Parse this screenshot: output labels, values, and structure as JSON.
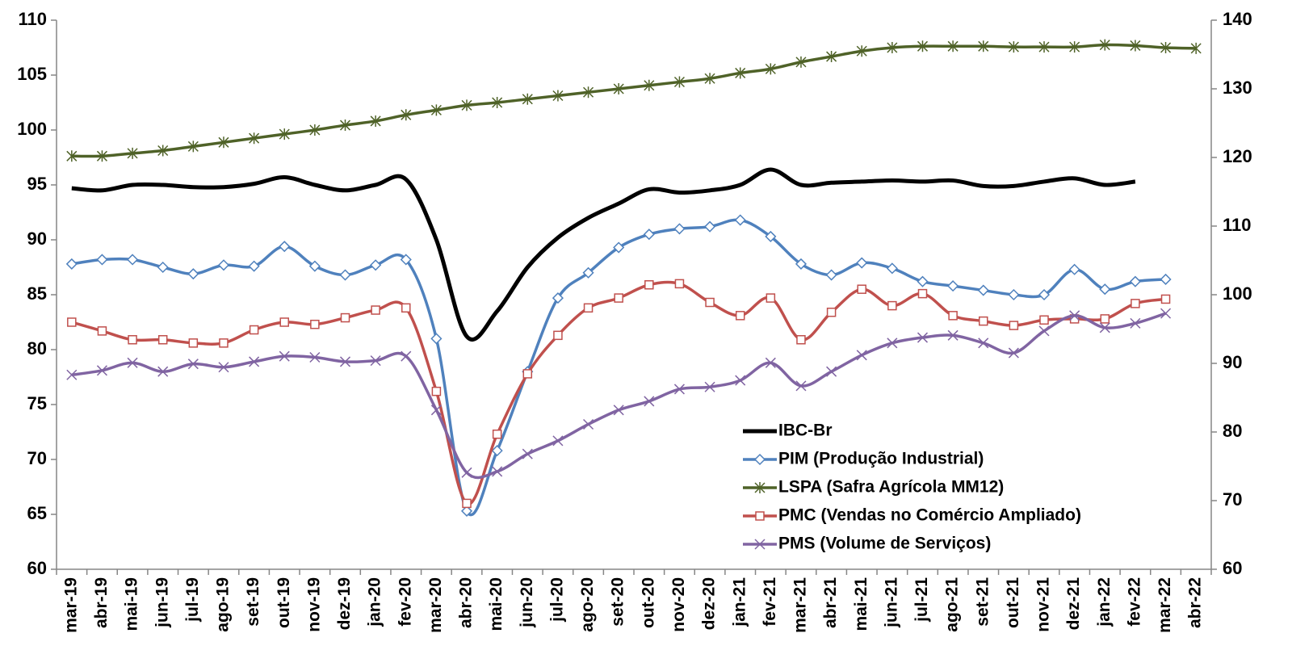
{
  "chart_data": {
    "type": "line",
    "categories": [
      "mar-19",
      "abr-19",
      "mai-19",
      "jun-19",
      "jul-19",
      "ago-19",
      "set-19",
      "out-19",
      "nov-19",
      "dez-19",
      "jan-20",
      "fev-20",
      "mar-20",
      "abr-20",
      "mai-20",
      "jun-20",
      "jul-20",
      "ago-20",
      "set-20",
      "out-20",
      "nov-20",
      "dez-20",
      "jan-21",
      "fev-21",
      "mar-21",
      "abr-21",
      "mai-21",
      "jun-21",
      "jul-21",
      "ago-21",
      "set-21",
      "out-21",
      "nov-21",
      "dez-21",
      "jan-22",
      "fev-22",
      "mar-22",
      "abr-22"
    ],
    "ylim": [
      60,
      110
    ],
    "yticks": [
      60,
      65,
      70,
      75,
      80,
      85,
      90,
      95,
      100,
      105,
      110
    ],
    "y2lim": [
      60,
      140
    ],
    "y2ticks": [
      60,
      70,
      80,
      90,
      100,
      110,
      120,
      130,
      140
    ],
    "grid": false,
    "legend": "lower-right",
    "series": [
      {
        "name": "IBC-Br",
        "color": "#000000",
        "line_width": 5,
        "values": [
          94.7,
          94.5,
          95.0,
          95.0,
          94.8,
          94.8,
          95.1,
          95.7,
          95.0,
          94.5,
          95.0,
          95.5,
          90.0,
          81.2,
          83.5,
          87.5,
          90.2,
          92.0,
          93.3,
          94.6,
          94.3,
          94.5,
          95.0,
          96.4,
          95.0,
          95.2,
          95.3,
          95.4,
          95.3,
          95.4,
          94.9,
          94.9,
          95.3,
          95.6,
          95.0,
          95.3,
          null,
          null
        ]
      },
      {
        "name": "PIM (Produção Industrial)",
        "color": "#4f81bd",
        "marker": "diamond",
        "line_width": 3.5,
        "values": [
          87.8,
          88.2,
          88.2,
          87.5,
          86.9,
          87.7,
          87.6,
          89.4,
          87.6,
          86.8,
          87.7,
          88.2,
          81.0,
          65.3,
          70.8,
          78.0,
          84.7,
          87.0,
          89.3,
          90.5,
          91.0,
          91.2,
          91.8,
          90.3,
          87.8,
          86.8,
          87.9,
          87.4,
          86.2,
          85.8,
          85.4,
          85.0,
          85.0,
          87.3,
          85.5,
          86.2,
          86.4,
          null
        ]
      },
      {
        "name": "LSPA (Safra Agrícola MM12)",
        "color": "#4f6228",
        "marker": "asterisk",
        "line_width": 3.5,
        "axis": "y2",
        "values": [
          120.2,
          120.2,
          120.6,
          121.0,
          121.6,
          122.2,
          122.8,
          123.4,
          124.0,
          124.7,
          125.3,
          126.2,
          126.9,
          127.6,
          128.0,
          128.5,
          129.0,
          129.5,
          130.0,
          130.5,
          131.0,
          131.5,
          132.3,
          132.9,
          133.9,
          134.7,
          135.5,
          136.0,
          136.2,
          136.2,
          136.2,
          136.1,
          136.1,
          136.1,
          136.4,
          136.3,
          136.0,
          135.9
        ]
      },
      {
        "name": "PMC (Vendas no Comércio Ampliado)",
        "color": "#c0504d",
        "marker": "square",
        "line_width": 3.5,
        "values": [
          82.5,
          81.7,
          80.9,
          80.9,
          80.6,
          80.6,
          81.8,
          82.5,
          82.3,
          82.9,
          83.6,
          83.8,
          76.2,
          66.0,
          72.3,
          77.8,
          81.3,
          83.8,
          84.7,
          85.9,
          86.0,
          84.3,
          83.1,
          84.7,
          80.9,
          83.4,
          85.5,
          84.0,
          85.1,
          83.1,
          82.6,
          82.2,
          82.7,
          82.8,
          82.8,
          84.2,
          84.6,
          null
        ]
      },
      {
        "name": "PMS (Volume de Serviços)",
        "color": "#8064a2",
        "marker": "x",
        "line_width": 3.5,
        "values": [
          77.7,
          78.1,
          78.8,
          78.0,
          78.7,
          78.4,
          78.9,
          79.4,
          79.3,
          78.9,
          79.0,
          79.4,
          74.5,
          68.8,
          68.9,
          70.5,
          71.7,
          73.2,
          74.5,
          75.3,
          76.4,
          76.6,
          77.2,
          78.8,
          76.7,
          78.0,
          79.5,
          80.6,
          81.1,
          81.3,
          80.6,
          79.7,
          81.7,
          83.1,
          82.0,
          82.4,
          83.3,
          null
        ]
      }
    ]
  }
}
